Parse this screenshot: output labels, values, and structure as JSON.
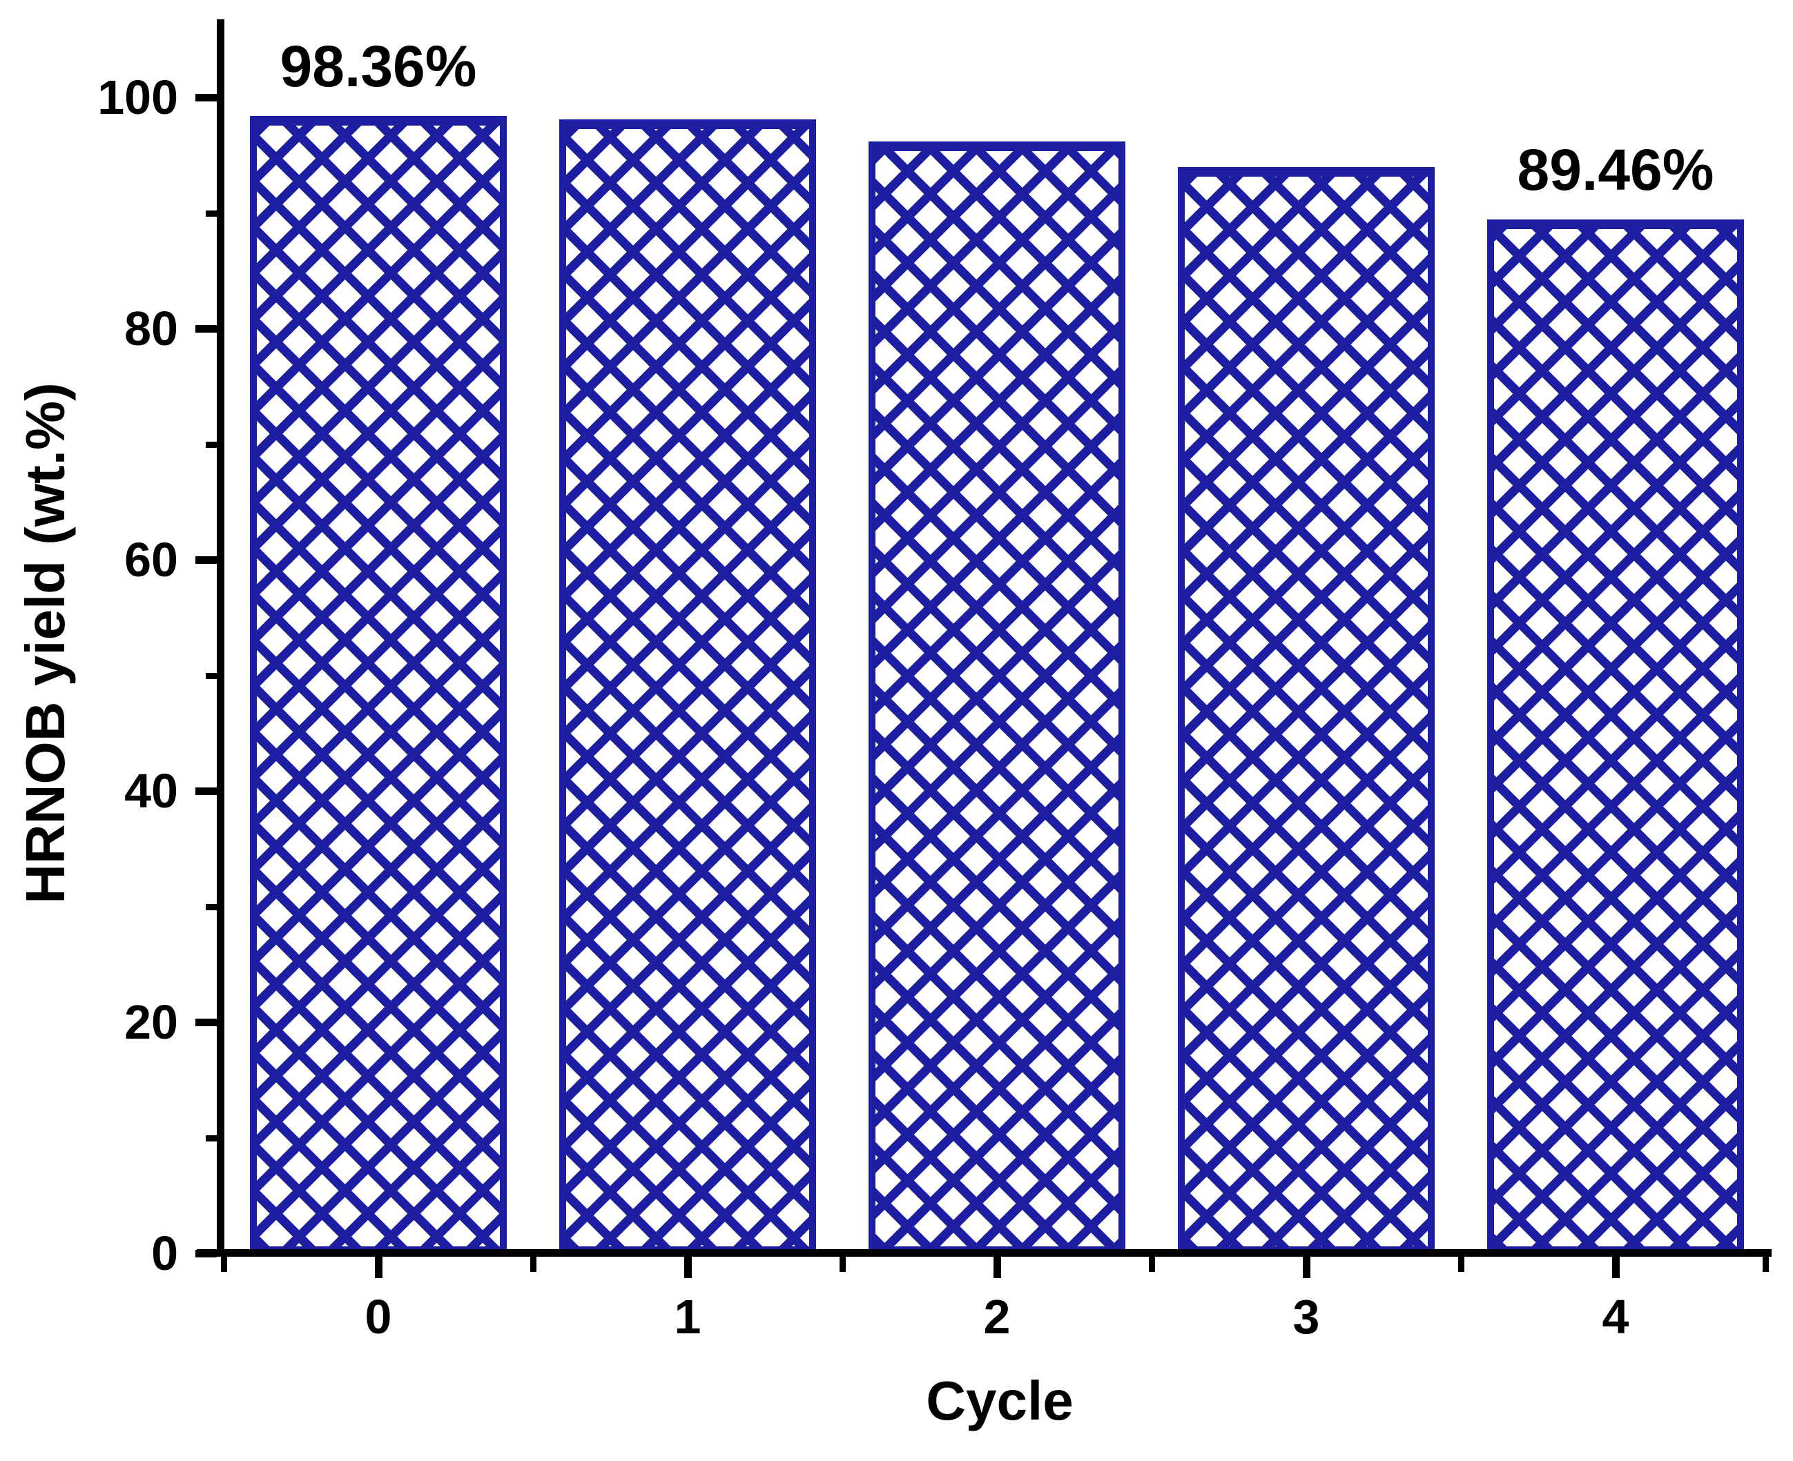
{
  "chart_data": {
    "type": "bar",
    "title": "",
    "xlabel": "Cycle",
    "ylabel": "HRNOB yield (wt.%)",
    "categories": [
      "0",
      "1",
      "2",
      "3",
      "4"
    ],
    "values": [
      98.36,
      98.1,
      96.2,
      94.0,
      89.46
    ],
    "labeled_values": {
      "0": "98.36%",
      "4": "89.46%"
    },
    "annotations": [
      {
        "bar_index": 0,
        "text": "98.36%"
      },
      {
        "bar_index": 4,
        "text": "89.46%"
      }
    ],
    "ylim": [
      0,
      105
    ],
    "y_major_ticks": [
      0,
      20,
      40,
      60,
      80,
      100
    ],
    "y_minor_ticks": [
      10,
      30,
      50,
      70,
      90
    ],
    "x_minor_ticks_between_categories": true,
    "grid": false,
    "legend": "none",
    "bar_fill_pattern": "diagonal-crosshatch",
    "bar_color": "#1E1EA2",
    "axis_color": "#000000",
    "text_color": "#000000",
    "background_color": "#FFFFFF"
  }
}
